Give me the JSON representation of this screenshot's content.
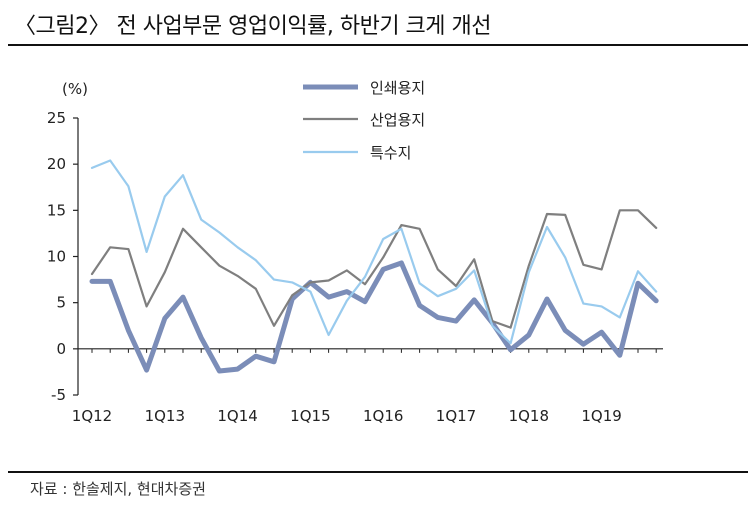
{
  "title": "〈그림2〉 전 사업부문 영업이익률, 하반기 크게 개선",
  "source": "자료 : 한솔제지, 현대차증권",
  "chart_data": {
    "type": "line",
    "ylabel": "(%)",
    "ylim": [
      -5,
      25
    ],
    "yticks": [
      -5,
      0,
      5,
      10,
      15,
      20,
      25
    ],
    "x_tick_labels": [
      "1Q12",
      "1Q13",
      "1Q14",
      "1Q15",
      "1Q16",
      "1Q17",
      "1Q18",
      "1Q19"
    ],
    "x_tick_index": [
      0,
      4,
      8,
      12,
      16,
      20,
      24,
      28
    ],
    "n_points": 32,
    "grid": false,
    "legend_position": "top-center",
    "series": [
      {
        "name": "인쇄용지",
        "color": "#7b8db8",
        "width": 5,
        "values": [
          7.3,
          7.3,
          2.0,
          -2.3,
          3.3,
          5.6,
          1.2,
          -2.4,
          -2.2,
          -0.8,
          -1.4,
          5.4,
          7.2,
          5.6,
          6.2,
          5.1,
          8.6,
          9.3,
          4.7,
          3.4,
          3.0,
          5.3,
          2.8,
          -0.1,
          1.5,
          5.4,
          2.0,
          0.5,
          1.8,
          -0.7,
          7.1,
          5.2
        ]
      },
      {
        "name": "산업용지",
        "color": "#7f7f7f",
        "width": 2.2,
        "values": [
          8.1,
          11.0,
          10.8,
          4.6,
          8.3,
          13.0,
          11.0,
          9.0,
          7.9,
          6.5,
          2.5,
          5.8,
          7.2,
          7.4,
          8.5,
          7.0,
          9.9,
          13.4,
          13.0,
          8.6,
          6.8,
          9.7,
          3.0,
          2.3,
          9.0,
          14.6,
          14.5,
          9.1,
          8.6,
          15.0,
          15.0,
          13.1
        ]
      },
      {
        "name": "특수지",
        "color": "#99cbee",
        "width": 2.2,
        "values": [
          19.6,
          20.4,
          17.6,
          10.5,
          16.5,
          18.8,
          14.0,
          12.6,
          11.0,
          9.6,
          7.5,
          7.2,
          6.2,
          1.5,
          5.2,
          7.8,
          11.9,
          13.0,
          7.1,
          5.7,
          6.5,
          8.5,
          2.5,
          0.6,
          8.3,
          13.2,
          9.9,
          4.9,
          4.6,
          3.4,
          8.4,
          6.2
        ]
      }
    ]
  }
}
